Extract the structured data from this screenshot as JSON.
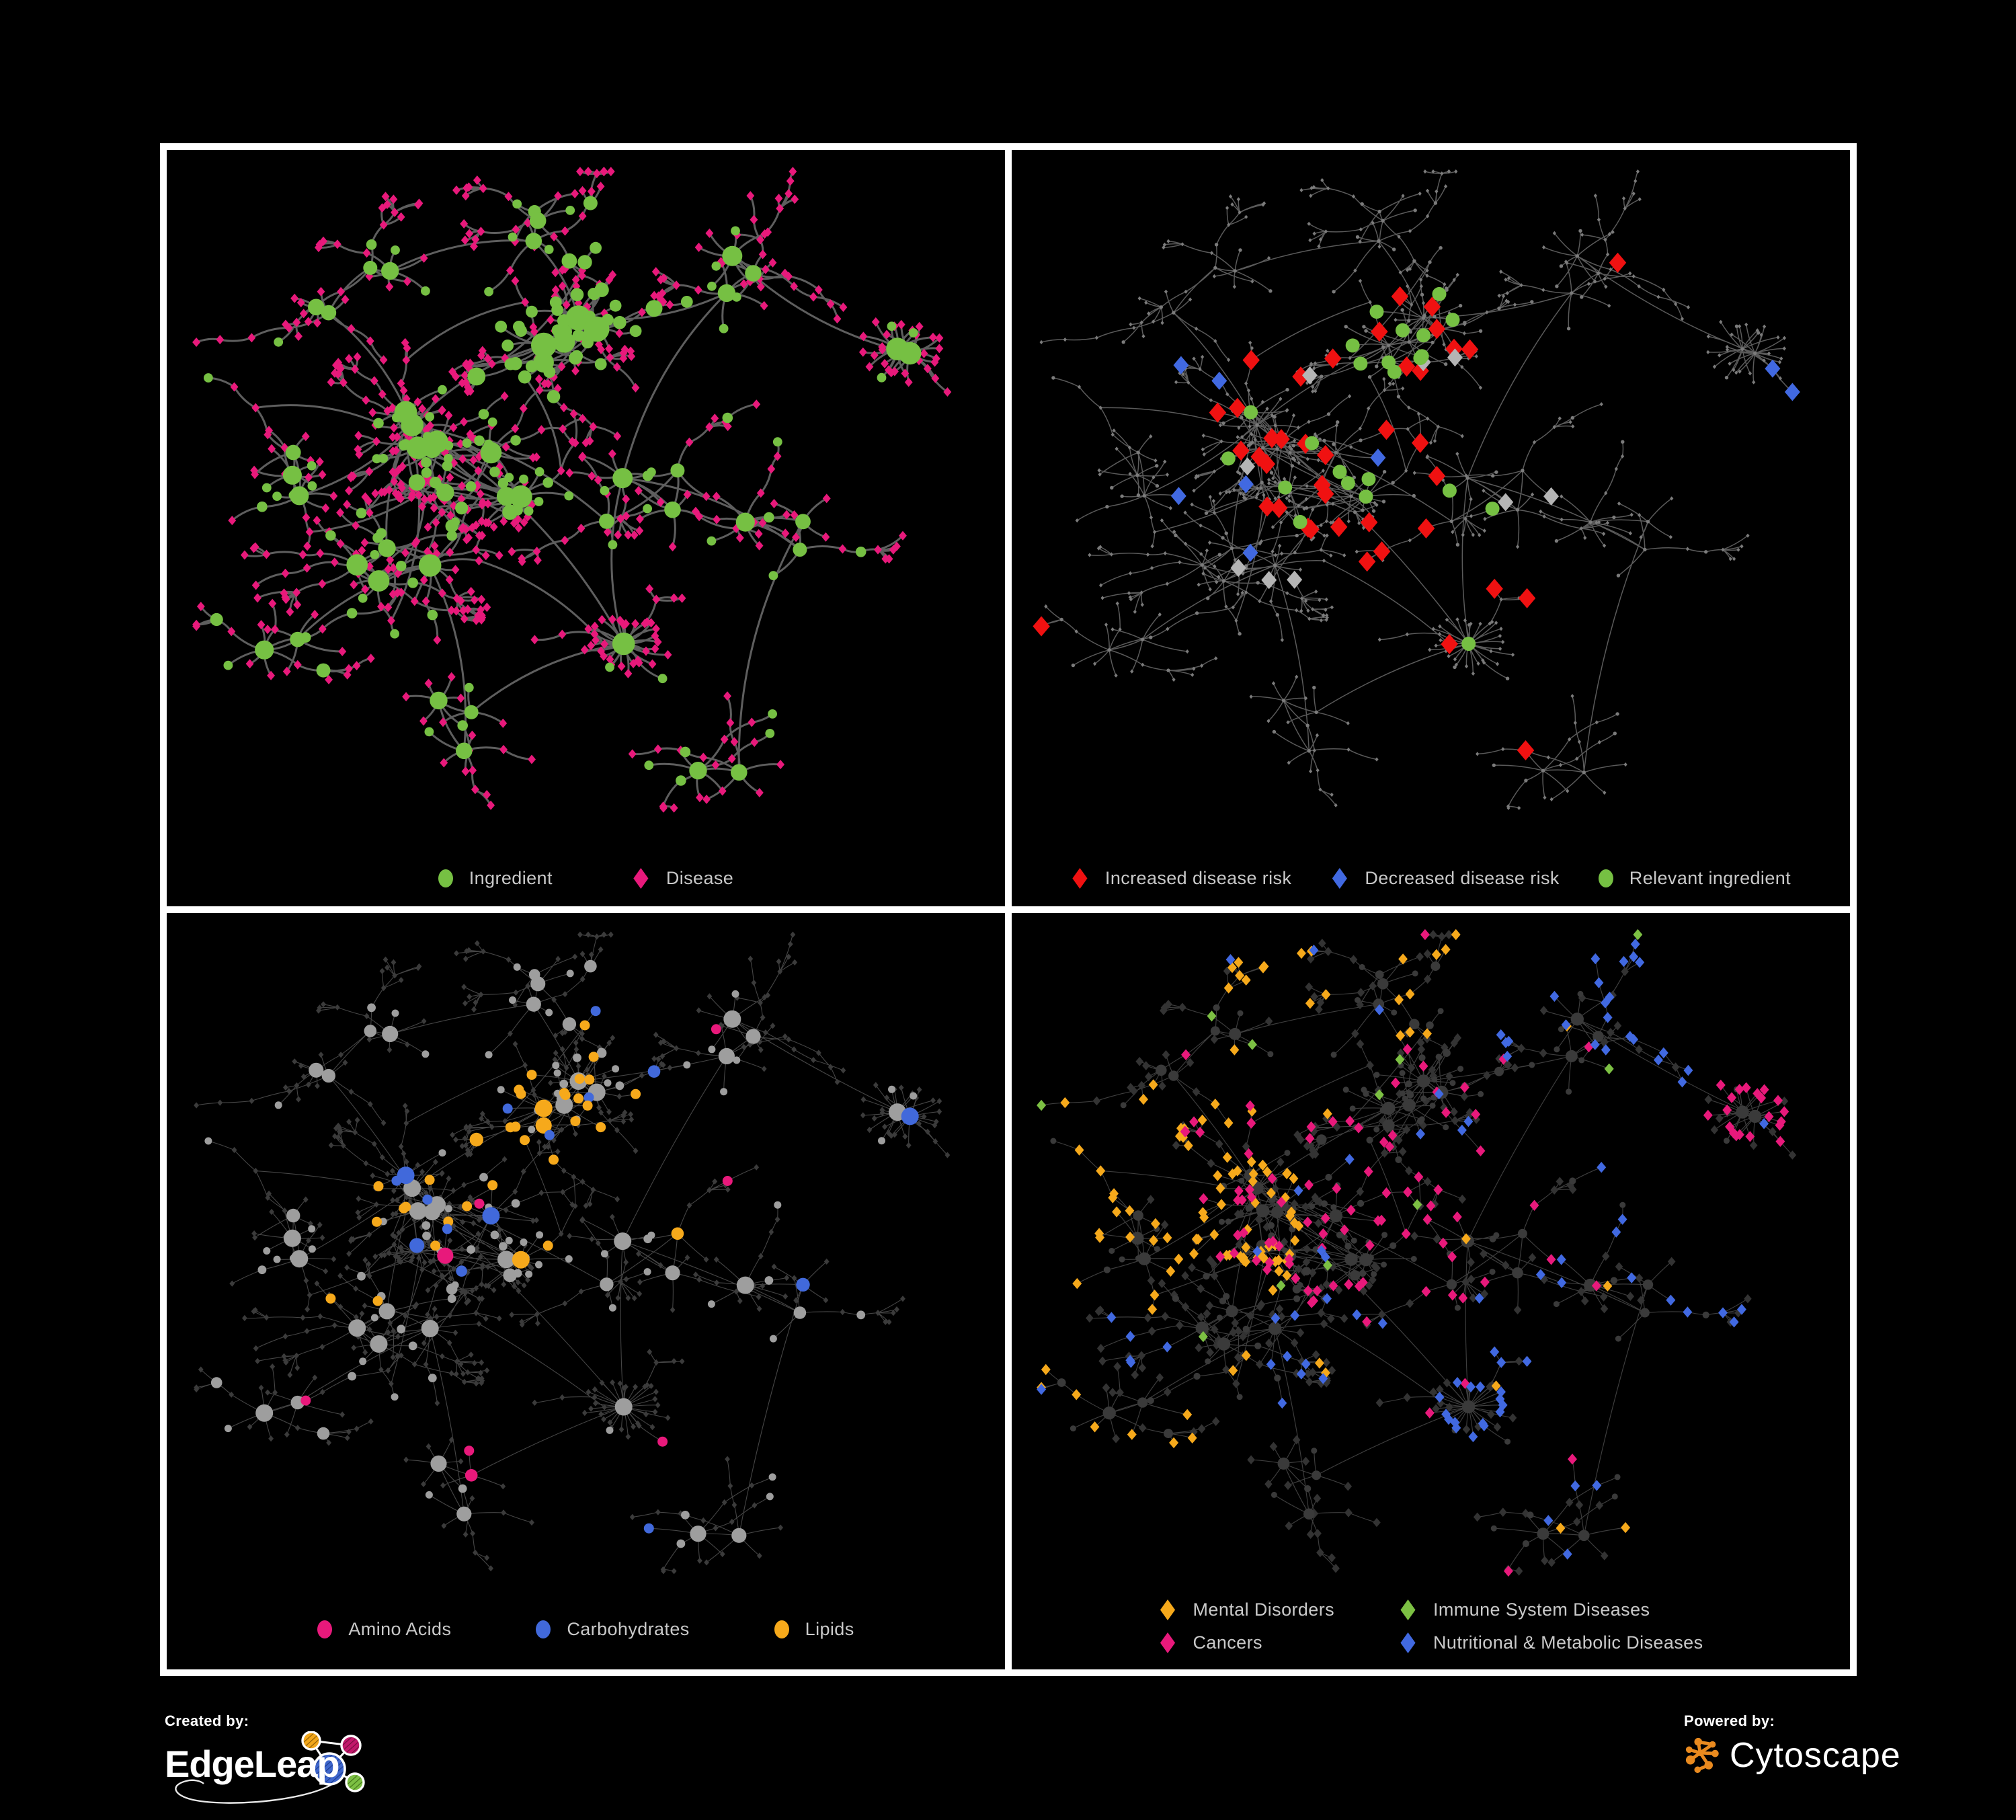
{
  "background": "#000000",
  "frame_color": "#FFFFFF",
  "panels": [
    {
      "legend": [
        {
          "label": "Ingredient",
          "shape": "circle",
          "color": "#76C043"
        },
        {
          "label": "Disease",
          "shape": "diamond",
          "color": "#E8197B"
        }
      ],
      "palette": {
        "edge": "#6F6F6F",
        "ingredient_node": "#76C043",
        "disease_node": "#E8197B"
      }
    },
    {
      "legend": [
        {
          "label": "Increased disease risk",
          "shape": "diamond",
          "color": "#F01111"
        },
        {
          "label": "Decreased disease risk",
          "shape": "diamond",
          "color": "#4169E1"
        },
        {
          "label": "Relevant ingredient",
          "shape": "circle",
          "color": "#76C043"
        }
      ],
      "palette": {
        "edge": "#6A6A6A",
        "base_node": "#7B7B7B",
        "increased_risk": "#F01111",
        "decreased_risk": "#4169E1",
        "relevant_ingredient": "#76C043",
        "unlabeled_highlight": "#B5B5B5"
      }
    },
    {
      "legend": [
        {
          "label": "Amino Acids",
          "shape": "circle",
          "color": "#E8197B"
        },
        {
          "label": "Carbohydrates",
          "shape": "circle",
          "color": "#4169DB"
        },
        {
          "label": "Lipids",
          "shape": "circle",
          "color": "#F6A91B"
        }
      ],
      "palette": {
        "edge": "#9A9A9A",
        "ingredient_node": "#9E9E9E",
        "disease_node": "#3B3B3B",
        "amino_acids": "#E8197B",
        "carbohydrates": "#4169DB",
        "lipids": "#F6A91B"
      }
    },
    {
      "legend": [
        {
          "label": "Mental Disorders",
          "shape": "diamond",
          "color": "#F6A91B"
        },
        {
          "label": "Immune System Diseases",
          "shape": "diamond",
          "color": "#7CC043"
        },
        {
          "label": "Cancers",
          "shape": "diamond",
          "color": "#E8197B"
        },
        {
          "label": "Nutritional & Metabolic Diseases",
          "shape": "diamond",
          "color": "#4169E1"
        }
      ],
      "palette": {
        "edge": "#949494",
        "ingredient_node": "#3A3A3A",
        "disease_node": "#333333",
        "mental_disorders": "#F6A91B",
        "immune_system_diseases": "#7CC043",
        "cancers": "#E8197B",
        "nutritional_metabolic_diseases": "#4169E1"
      }
    }
  ],
  "footer": {
    "created_by": {
      "label": "Created by:",
      "name": "EdgeLeap"
    },
    "powered_by": {
      "label": "Powered by:",
      "name": "Cytoscape"
    }
  }
}
